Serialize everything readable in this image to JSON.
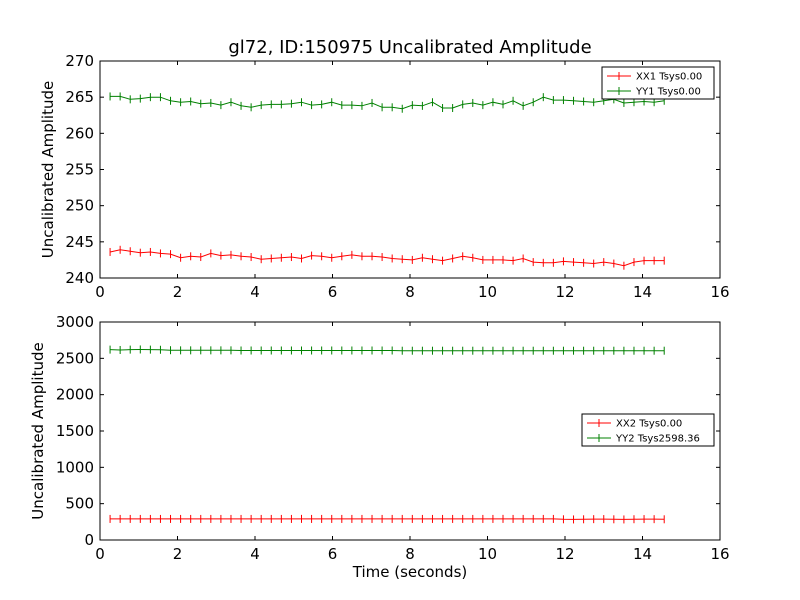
{
  "chart_data": [
    {
      "type": "line",
      "title": "gl72, ID:150975 Uncalibrated Amplitude",
      "xlabel": "",
      "ylabel": "Uncalibrated Amplitude",
      "xlim": [
        0,
        16
      ],
      "ylim": [
        240,
        270
      ],
      "x_ticks": [
        0,
        2,
        4,
        6,
        8,
        10,
        12,
        14,
        16
      ],
      "y_ticks": [
        240,
        245,
        250,
        255,
        260,
        265,
        270
      ],
      "legend_position": "top-right",
      "x": [
        0.26,
        0.52,
        0.78,
        1.04,
        1.3,
        1.56,
        1.82,
        2.08,
        2.34,
        2.6,
        2.86,
        3.12,
        3.38,
        3.64,
        3.9,
        4.16,
        4.42,
        4.68,
        4.94,
        5.2,
        5.46,
        5.72,
        5.98,
        6.24,
        6.5,
        6.76,
        7.02,
        7.28,
        7.54,
        7.8,
        8.06,
        8.32,
        8.58,
        8.84,
        9.1,
        9.36,
        9.62,
        9.88,
        10.14,
        10.4,
        10.66,
        10.92,
        11.18,
        11.44,
        11.7,
        11.96,
        12.22,
        12.48,
        12.74,
        13.0,
        13.26,
        13.52,
        13.78,
        14.04,
        14.3,
        14.56
      ],
      "series": [
        {
          "name": "XX1 Tsys0.00",
          "color": "#ff0000",
          "values": [
            243.6,
            243.9,
            243.7,
            243.5,
            243.6,
            243.4,
            243.3,
            242.8,
            243.0,
            242.9,
            243.4,
            243.1,
            243.2,
            243.0,
            242.9,
            242.6,
            242.7,
            242.8,
            242.9,
            242.7,
            243.1,
            243.0,
            242.8,
            243.0,
            243.2,
            243.0,
            243.0,
            242.9,
            242.7,
            242.6,
            242.5,
            242.8,
            242.6,
            242.4,
            242.7,
            243.0,
            242.8,
            242.5,
            242.5,
            242.5,
            242.4,
            242.7,
            242.2,
            242.1,
            242.1,
            242.3,
            242.2,
            242.1,
            242.0,
            242.2,
            242.0,
            241.7,
            242.2,
            242.4,
            242.4,
            242.4
          ]
        },
        {
          "name": "YY1 Tsys0.00",
          "color": "#008000",
          "values": [
            265.1,
            265.1,
            264.7,
            264.8,
            265.0,
            265.0,
            264.5,
            264.3,
            264.4,
            264.1,
            264.2,
            263.9,
            264.3,
            263.8,
            263.6,
            263.9,
            264.0,
            264.0,
            264.1,
            264.3,
            263.9,
            264.0,
            264.3,
            263.9,
            263.9,
            263.8,
            264.2,
            263.6,
            263.6,
            263.4,
            263.9,
            263.8,
            264.3,
            263.5,
            263.5,
            264.0,
            264.2,
            263.9,
            264.3,
            264.0,
            264.5,
            263.8,
            264.3,
            265.0,
            264.6,
            264.6,
            264.5,
            264.4,
            264.3,
            264.5,
            264.7,
            264.2,
            264.3,
            264.4,
            264.3,
            264.5
          ]
        }
      ]
    },
    {
      "type": "line",
      "title": "",
      "xlabel": "Time (seconds)",
      "ylabel": "Uncalibrated Amplitude",
      "xlim": [
        0,
        16
      ],
      "ylim": [
        0,
        3000
      ],
      "x_ticks": [
        0,
        2,
        4,
        6,
        8,
        10,
        12,
        14,
        16
      ],
      "y_ticks": [
        0,
        500,
        1000,
        1500,
        2000,
        2500,
        3000
      ],
      "legend_position": "center-right",
      "x": [
        0.26,
        0.52,
        0.78,
        1.04,
        1.3,
        1.56,
        1.82,
        2.08,
        2.34,
        2.6,
        2.86,
        3.12,
        3.38,
        3.64,
        3.9,
        4.16,
        4.42,
        4.68,
        4.94,
        5.2,
        5.46,
        5.72,
        5.98,
        6.24,
        6.5,
        6.76,
        7.02,
        7.28,
        7.54,
        7.8,
        8.06,
        8.32,
        8.58,
        8.84,
        9.1,
        9.36,
        9.62,
        9.88,
        10.14,
        10.4,
        10.66,
        10.92,
        11.18,
        11.44,
        11.7,
        11.96,
        12.22,
        12.48,
        12.74,
        13.0,
        13.26,
        13.52,
        13.78,
        14.04,
        14.3,
        14.56
      ],
      "series": [
        {
          "name": "XX2 Tsys0.00",
          "color": "#ff0000",
          "values": [
            290,
            290,
            290,
            290,
            290,
            290,
            290,
            290,
            290,
            290,
            290,
            290,
            290,
            290,
            290,
            290,
            290,
            290,
            290,
            290,
            290,
            290,
            290,
            290,
            290,
            290,
            290,
            290,
            290,
            290,
            290,
            290,
            290,
            290,
            290,
            290,
            290,
            290,
            290,
            290,
            290,
            290,
            290,
            290,
            290,
            285,
            283,
            285,
            287,
            288,
            285,
            283,
            286,
            288,
            287,
            285
          ]
        },
        {
          "name": "YY2 Tsys2598.36",
          "color": "#008000",
          "values": [
            2620,
            2615,
            2620,
            2622,
            2620,
            2618,
            2612,
            2610,
            2610,
            2610,
            2610,
            2610,
            2610,
            2608,
            2608,
            2608,
            2608,
            2608,
            2608,
            2608,
            2608,
            2608,
            2608,
            2608,
            2608,
            2608,
            2608,
            2608,
            2608,
            2605,
            2605,
            2605,
            2605,
            2605,
            2605,
            2605,
            2605,
            2605,
            2605,
            2605,
            2605,
            2605,
            2605,
            2605,
            2605,
            2605,
            2605,
            2605,
            2605,
            2605,
            2605,
            2605,
            2605,
            2605,
            2605,
            2605
          ]
        }
      ]
    }
  ]
}
